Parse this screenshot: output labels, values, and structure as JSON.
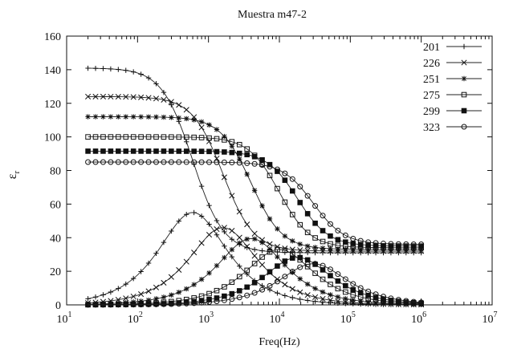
{
  "chart_data": {
    "type": "line",
    "title": "Muestra m47-2",
    "xlabel": "Freq(Hz)",
    "ylabel": "ε",
    "ylabel_sub": "r",
    "x_scale": "log",
    "xlim": [
      10,
      10000000
    ],
    "ylim": [
      0,
      160
    ],
    "x_ticks": [
      {
        "value": 10,
        "base": "10",
        "exp": "1"
      },
      {
        "value": 100,
        "base": "10",
        "exp": "2"
      },
      {
        "value": 1000,
        "base": "10",
        "exp": "3"
      },
      {
        "value": 10000,
        "base": "10",
        "exp": "4"
      },
      {
        "value": 100000,
        "base": "10",
        "exp": "5"
      },
      {
        "value": 1000000,
        "base": "10",
        "exp": "6"
      },
      {
        "value": 10000000,
        "base": "10",
        "exp": "7"
      }
    ],
    "y_ticks": [
      0,
      20,
      40,
      60,
      80,
      100,
      120,
      140,
      160
    ],
    "legend_position": "top-right",
    "grid": false,
    "freq_range": [
      20,
      1000000
    ],
    "series": [
      {
        "name": "201",
        "marker": "plus",
        "eps_s": 141,
        "eps_inf": 31,
        "fc": 600
      },
      {
        "name": "226",
        "marker": "cross",
        "eps_s": 124,
        "eps_inf": 32,
        "fc": 1600
      },
      {
        "name": "251",
        "marker": "star",
        "eps_s": 112,
        "eps_inf": 33,
        "fc": 4000
      },
      {
        "name": "275",
        "marker": "square-open",
        "eps_s": 100,
        "eps_inf": 34,
        "fc": 10000
      },
      {
        "name": "299",
        "marker": "square-filled",
        "eps_s": 91.5,
        "eps_inf": 35,
        "fc": 18000
      },
      {
        "name": "323",
        "marker": "circle-open",
        "eps_s": 85,
        "eps_inf": 36,
        "fc": 30000
      }
    ]
  }
}
